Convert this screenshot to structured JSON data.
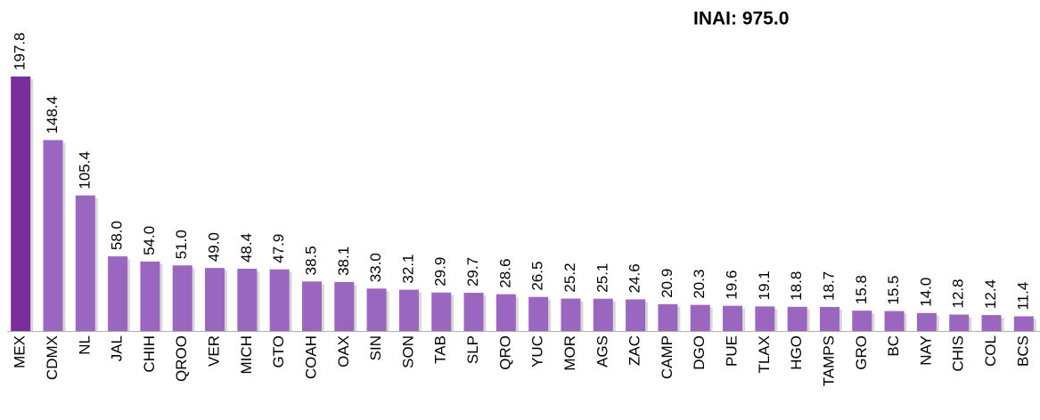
{
  "chart_data": {
    "type": "bar",
    "annotation": "INAI: 975.0",
    "categories": [
      "MEX",
      "CDMX",
      "NL",
      "JAL",
      "CHIH",
      "QROO",
      "VER",
      "MICH",
      "GTO",
      "COAH",
      "OAX",
      "SIN",
      "SON",
      "TAB",
      "SLP",
      "QRO",
      "YUC",
      "MOR",
      "AGS",
      "ZAC",
      "CAMP",
      "DGO",
      "PUE",
      "TLAX",
      "HGO",
      "TAMPS",
      "GRO",
      "BC",
      "NAY",
      "CHIS",
      "COL",
      "BCS"
    ],
    "values": [
      197.8,
      148.4,
      105.4,
      58,
      54,
      51,
      49,
      48.4,
      47.9,
      38.5,
      38.1,
      33,
      32.1,
      29.9,
      29.7,
      28.6,
      26.5,
      25.2,
      25.1,
      24.6,
      20.9,
      20.3,
      19.6,
      19.1,
      18.8,
      18.7,
      15.8,
      15.5,
      14,
      12.8,
      12.4,
      11.4
    ],
    "value_labels": [
      "197.8",
      "148.4",
      "105.4",
      "58.0",
      "54.0",
      "51.0",
      "49.0",
      "48.4",
      "47.9",
      "38.5",
      "38.1",
      "33.0",
      "32.1",
      "29.9",
      "29.7",
      "28.6",
      "26.5",
      "25.2",
      "25.1",
      "24.6",
      "20.9",
      "20.3",
      "19.6",
      "19.1",
      "18.8",
      "18.7",
      "15.8",
      "15.5",
      "14.0",
      "12.8",
      "12.4",
      "11.4"
    ],
    "colors": [
      "#7a2e9b",
      "#9a66bf",
      "#9a66bf",
      "#9a66bf",
      "#9a66bf",
      "#9a66bf",
      "#9a66bf",
      "#9a66bf",
      "#9a66bf",
      "#9a66bf",
      "#9a66bf",
      "#9a66bf",
      "#9a66bf",
      "#9a66bf",
      "#9a66bf",
      "#9a66bf",
      "#9a66bf",
      "#9a66bf",
      "#9a66bf",
      "#9a66bf",
      "#9a66bf",
      "#9a66bf",
      "#9a66bf",
      "#9a66bf",
      "#9a66bf",
      "#9a66bf",
      "#9a66bf",
      "#9a66bf",
      "#9a66bf",
      "#9a66bf",
      "#9a66bf",
      "#9a66bf"
    ]
  }
}
